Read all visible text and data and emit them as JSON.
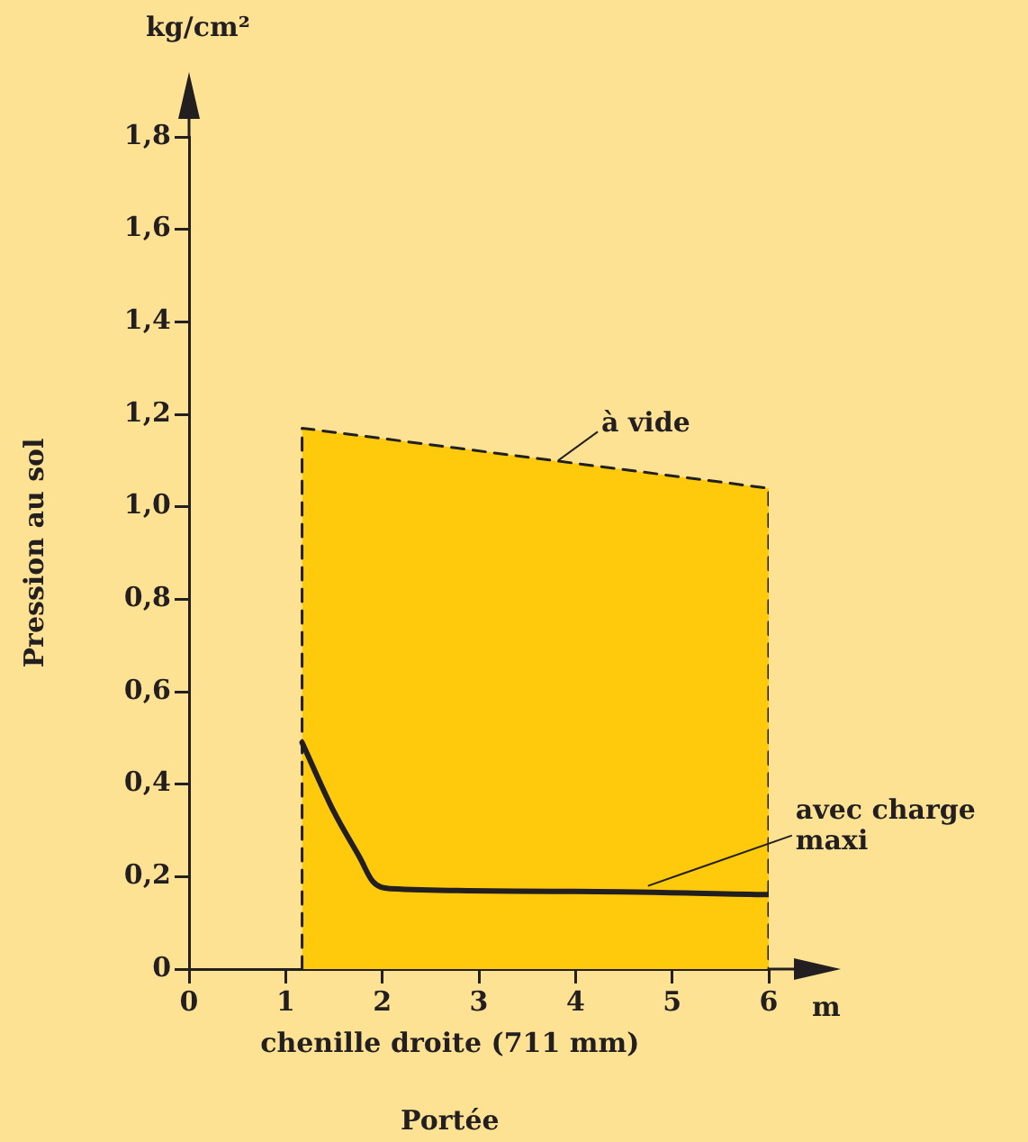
{
  "chart_data": {
    "type": "line",
    "ylabel": "Pression au sol",
    "xlabel": "Portée",
    "xlim": [
      0,
      6
    ],
    "xticks": [
      0,
      1,
      2,
      3,
      4,
      5,
      6
    ],
    "ylim": [
      0,
      1.8
    ],
    "yticks": [
      0,
      {
        "value": 0.2,
        "label": "0,2"
      },
      {
        "value": 0.4,
        "label": "0,4"
      },
      {
        "value": 0.6,
        "label": "0,6"
      },
      {
        "value": 0.8,
        "label": "0,8"
      },
      {
        "value": 1,
        "label": "1,0"
      },
      {
        "value": 1.2,
        "label": "1,2"
      },
      {
        "value": 1.4,
        "label": "1,4"
      },
      {
        "value": 1.6,
        "label": "1,6"
      },
      {
        "value": 1.8,
        "label": "1,8"
      }
    ],
    "grid": false,
    "legend": false,
    "marker": "none",
    "series": [
      {
        "type": "area",
        "color": "#ffca0b",
        "line_style": "dashed",
        "x": [
          1.17,
          1.17,
          6,
          6
        ],
        "values": [
          0,
          1.17,
          1.04,
          0
        ]
      },
      {
        "type": "line",
        "color": "#231f20",
        "line_style": "solid",
        "x": [
          1.17,
          1.5,
          1.77,
          1.9,
          2.08,
          4,
          6
        ],
        "values": [
          0.49,
          0.34,
          0.24,
          0.19,
          0.174,
          0.168,
          0.161
        ]
      }
    ],
    "annotations": [
      "kg/cm²",
      "m",
      "chenille droite (711 mm)",
      {
        "text": "à vide",
        "x": 3.82,
        "y": 1.1
      },
      {
        "text": "avec charge maxi",
        "x": 4.75,
        "y": 0.18
      }
    ]
  }
}
